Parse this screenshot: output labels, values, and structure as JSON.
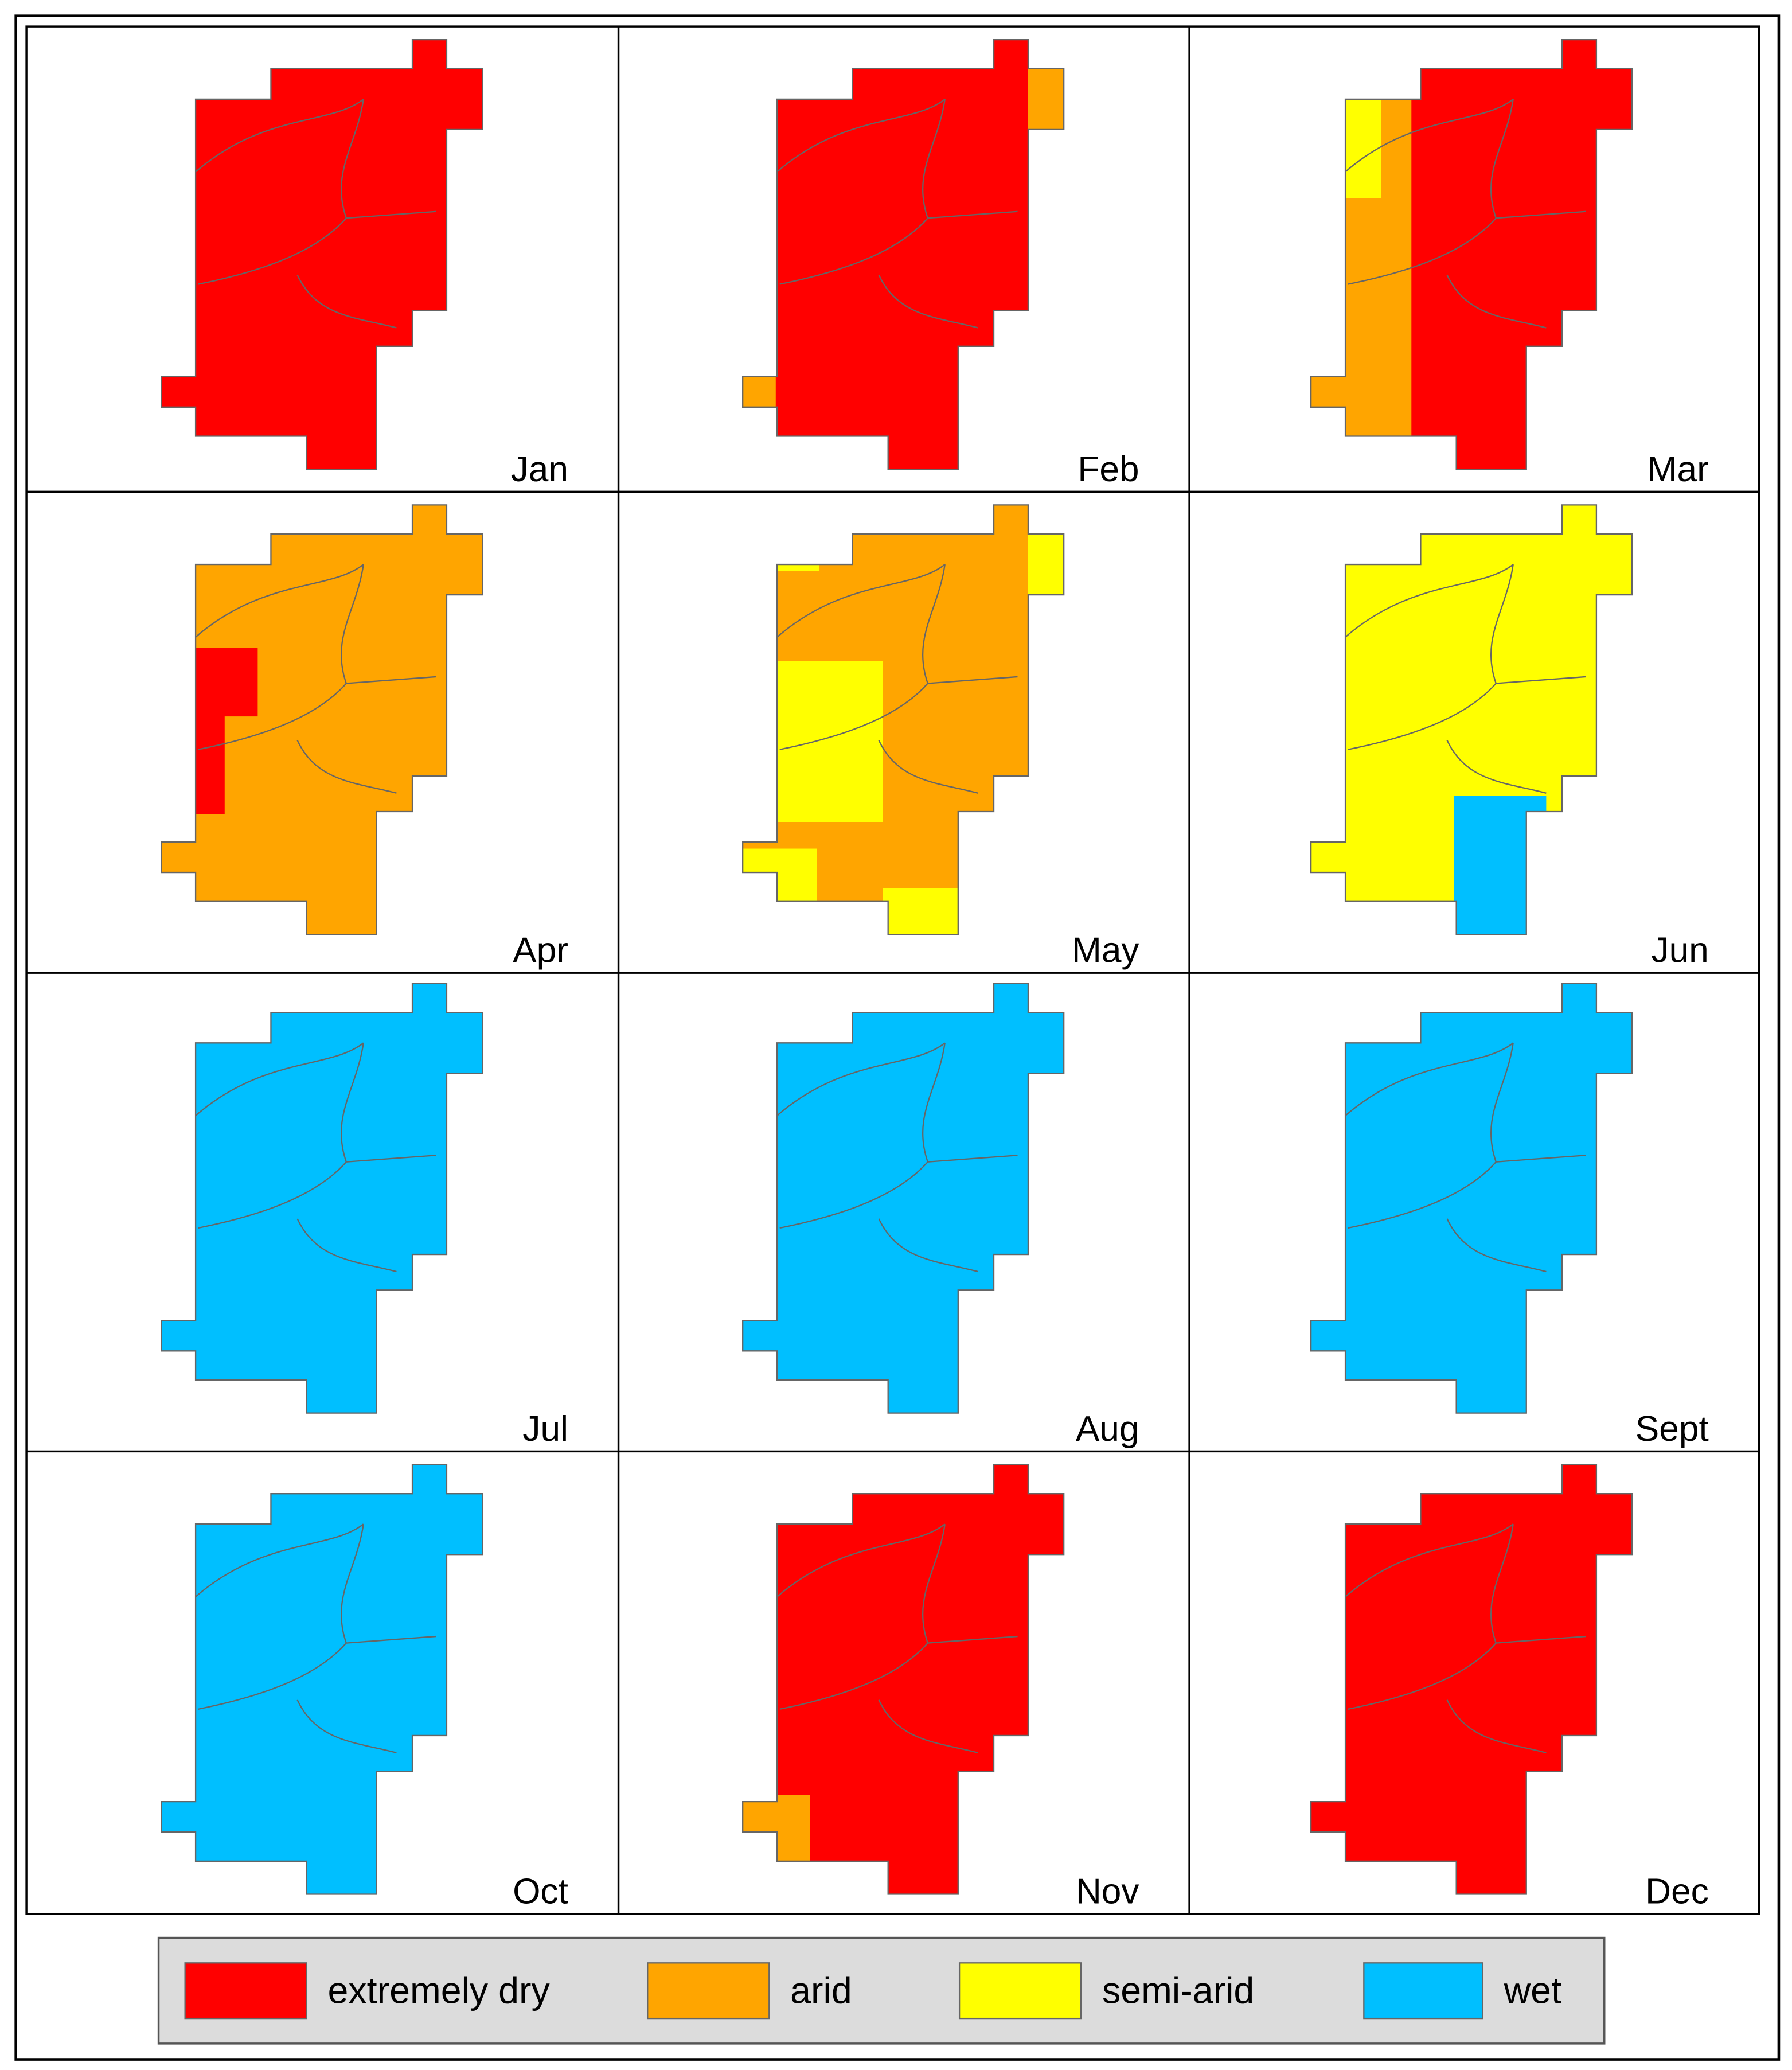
{
  "panels": [
    {
      "label": "Jan",
      "colors": [
        "#ff0000"
      ]
    },
    {
      "label": "Feb",
      "colors": [
        "#ff0000",
        "#ffa500"
      ]
    },
    {
      "label": "Mar",
      "colors": [
        "#ff0000",
        "#ffa500",
        "#ffff00"
      ]
    },
    {
      "label": "Apr",
      "colors": [
        "#ffa500",
        "#ff0000"
      ]
    },
    {
      "label": "May",
      "colors": [
        "#ffa500",
        "#ffff00"
      ]
    },
    {
      "label": "Jun",
      "colors": [
        "#ffff00",
        "#00bfff"
      ]
    },
    {
      "label": "Jul",
      "colors": [
        "#00bfff"
      ]
    },
    {
      "label": "Aug",
      "colors": [
        "#00bfff"
      ]
    },
    {
      "label": "Sept",
      "colors": [
        "#00bfff"
      ]
    },
    {
      "label": "Oct",
      "colors": [
        "#00bfff"
      ]
    },
    {
      "label": "Nov",
      "colors": [
        "#ff0000",
        "#ffa500"
      ]
    },
    {
      "label": "Dec",
      "colors": [
        "#ff0000"
      ]
    }
  ],
  "legend": [
    {
      "name": "extremely dry",
      "color": "#ff0000"
    },
    {
      "name": "arid",
      "color": "#ffa500"
    },
    {
      "name": "semi-arid",
      "color": "#ffff00"
    },
    {
      "name": "wet",
      "color": "#00bfff"
    }
  ]
}
